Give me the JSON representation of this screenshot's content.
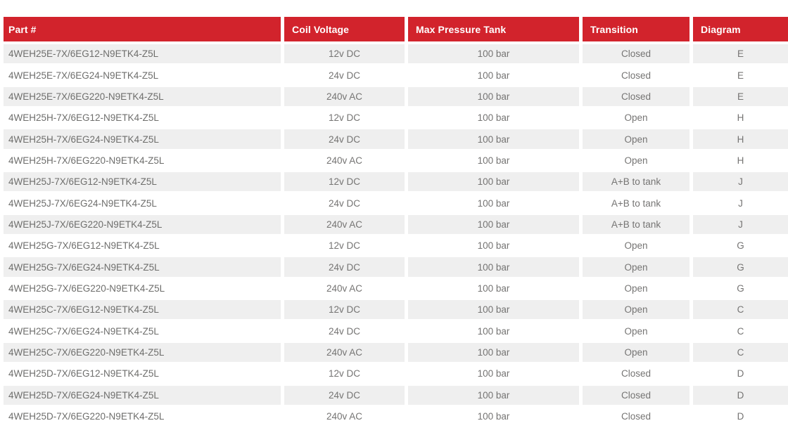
{
  "colors": {
    "header_bg": "#d2232c",
    "header_text": "#ffffff",
    "row_stripe_bg": "#efefef",
    "row_bg": "#ffffff",
    "body_text": "#757473"
  },
  "table": {
    "columns": [
      {
        "label": "Part #"
      },
      {
        "label": "Coil Voltage"
      },
      {
        "label": "Max Pressure Tank"
      },
      {
        "label": "Transition"
      },
      {
        "label": "Diagram"
      }
    ],
    "rows": [
      {
        "part": "4WEH25E-7X/6EG12-N9ETK4-Z5L",
        "coil_voltage": "12v DC",
        "max_pressure_tank": "100 bar",
        "transition": "Closed",
        "diagram": "E"
      },
      {
        "part": "4WEH25E-7X/6EG24-N9ETK4-Z5L",
        "coil_voltage": "24v DC",
        "max_pressure_tank": "100 bar",
        "transition": "Closed",
        "diagram": "E"
      },
      {
        "part": "4WEH25E-7X/6EG220-N9ETK4-Z5L",
        "coil_voltage": "240v AC",
        "max_pressure_tank": "100 bar",
        "transition": "Closed",
        "diagram": "E"
      },
      {
        "part": "4WEH25H-7X/6EG12-N9ETK4-Z5L",
        "coil_voltage": "12v DC",
        "max_pressure_tank": "100 bar",
        "transition": "Open",
        "diagram": "H"
      },
      {
        "part": "4WEH25H-7X/6EG24-N9ETK4-Z5L",
        "coil_voltage": "24v DC",
        "max_pressure_tank": "100 bar",
        "transition": "Open",
        "diagram": "H"
      },
      {
        "part": "4WEH25H-7X/6EG220-N9ETK4-Z5L",
        "coil_voltage": "240v AC",
        "max_pressure_tank": "100 bar",
        "transition": "Open",
        "diagram": "H"
      },
      {
        "part": "4WEH25J-7X/6EG12-N9ETK4-Z5L",
        "coil_voltage": "12v DC",
        "max_pressure_tank": "100 bar",
        "transition": "A+B to tank",
        "diagram": "J"
      },
      {
        "part": "4WEH25J-7X/6EG24-N9ETK4-Z5L",
        "coil_voltage": "24v DC",
        "max_pressure_tank": "100 bar",
        "transition": "A+B to tank",
        "diagram": "J"
      },
      {
        "part": "4WEH25J-7X/6EG220-N9ETK4-Z5L",
        "coil_voltage": "240v AC",
        "max_pressure_tank": "100 bar",
        "transition": "A+B to tank",
        "diagram": "J"
      },
      {
        "part": "4WEH25G-7X/6EG12-N9ETK4-Z5L",
        "coil_voltage": "12v DC",
        "max_pressure_tank": "100 bar",
        "transition": "Open",
        "diagram": "G"
      },
      {
        "part": "4WEH25G-7X/6EG24-N9ETK4-Z5L",
        "coil_voltage": "24v DC",
        "max_pressure_tank": "100 bar",
        "transition": "Open",
        "diagram": "G"
      },
      {
        "part": "4WEH25G-7X/6EG220-N9ETK4-Z5L",
        "coil_voltage": "240v AC",
        "max_pressure_tank": "100 bar",
        "transition": "Open",
        "diagram": "G"
      },
      {
        "part": "4WEH25C-7X/6EG12-N9ETK4-Z5L",
        "coil_voltage": "12v DC",
        "max_pressure_tank": "100 bar",
        "transition": "Open",
        "diagram": "C"
      },
      {
        "part": "4WEH25C-7X/6EG24-N9ETK4-Z5L",
        "coil_voltage": "24v DC",
        "max_pressure_tank": "100 bar",
        "transition": "Open",
        "diagram": "C"
      },
      {
        "part": "4WEH25C-7X/6EG220-N9ETK4-Z5L",
        "coil_voltage": "240v AC",
        "max_pressure_tank": "100 bar",
        "transition": "Open",
        "diagram": "C"
      },
      {
        "part": "4WEH25D-7X/6EG12-N9ETK4-Z5L",
        "coil_voltage": "12v DC",
        "max_pressure_tank": "100 bar",
        "transition": "Closed",
        "diagram": "D"
      },
      {
        "part": "4WEH25D-7X/6EG24-N9ETK4-Z5L",
        "coil_voltage": "24v DC",
        "max_pressure_tank": "100 bar",
        "transition": "Closed",
        "diagram": "D"
      },
      {
        "part": "4WEH25D-7X/6EG220-N9ETK4-Z5L",
        "coil_voltage": "240v AC",
        "max_pressure_tank": "100 bar",
        "transition": "Closed",
        "diagram": "D"
      }
    ]
  }
}
